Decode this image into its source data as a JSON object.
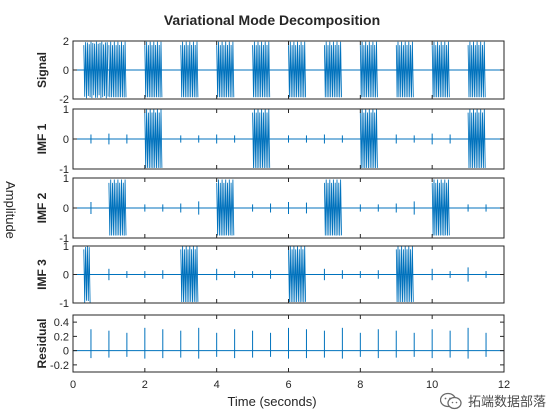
{
  "figure": {
    "title": "Variational Mode Decomposition",
    "xlabel": "Time (seconds)",
    "supylabel": "Amplitude",
    "line_color": "#0072BD",
    "watermark": "拓端数据部落"
  },
  "chart_data": {
    "type": "line",
    "title": "Variational Mode Decomposition",
    "xlabel": "Time (seconds)",
    "ylabel": "Amplitude",
    "xlim": [
      0,
      12
    ],
    "xticks": [
      "0",
      "2",
      "4",
      "6",
      "8",
      "10",
      "12"
    ],
    "grid": false,
    "panels": [
      {
        "name": "Signal",
        "ylim": [
          -2,
          2
        ],
        "yticks": [
          "-2",
          "0",
          "2"
        ],
        "bursts": [
          [
            0.3,
            1.0
          ],
          [
            1.0,
            1.5
          ],
          [
            2.0,
            2.5
          ],
          [
            3.0,
            3.5
          ],
          [
            4.0,
            4.5
          ],
          [
            5.0,
            5.5
          ],
          [
            6.0,
            6.5
          ],
          [
            7.0,
            7.5
          ],
          [
            8.0,
            8.5
          ],
          [
            9.0,
            9.5
          ],
          [
            10.0,
            10.5
          ],
          [
            11.0,
            11.5
          ]
        ],
        "amplitude": 1.95,
        "spikes": []
      },
      {
        "name": "IMF 1",
        "ylim": [
          -1,
          1
        ],
        "yticks": [
          "-1",
          "0",
          "1"
        ],
        "bursts": [
          [
            2.0,
            2.5
          ],
          [
            5.0,
            5.5
          ],
          [
            8.0,
            8.5
          ],
          [
            11.0,
            11.5
          ]
        ],
        "amplitude": 1.0,
        "spikes": [
          [
            0.5,
            0.15
          ],
          [
            1.0,
            0.18
          ],
          [
            1.5,
            0.15
          ],
          [
            3.0,
            0.12
          ],
          [
            3.5,
            0.12
          ],
          [
            4.0,
            0.15
          ],
          [
            4.5,
            0.12
          ],
          [
            6.0,
            0.12
          ],
          [
            6.5,
            0.12
          ],
          [
            7.0,
            0.15
          ],
          [
            7.5,
            0.12
          ],
          [
            9.0,
            0.15
          ],
          [
            9.5,
            0.12
          ],
          [
            10.0,
            0.18
          ],
          [
            10.5,
            0.15
          ]
        ]
      },
      {
        "name": "IMF 2",
        "ylim": [
          -1,
          1
        ],
        "yticks": [
          "-1",
          "0",
          "1"
        ],
        "bursts": [
          [
            1.0,
            1.5
          ],
          [
            4.0,
            4.5
          ],
          [
            7.0,
            7.5
          ],
          [
            10.0,
            10.5
          ]
        ],
        "amplitude": 0.95,
        "spikes": [
          [
            0.5,
            0.2
          ],
          [
            2.0,
            0.12
          ],
          [
            2.5,
            0.12
          ],
          [
            3.0,
            0.15
          ],
          [
            3.5,
            0.22
          ],
          [
            5.0,
            0.12
          ],
          [
            5.5,
            0.15
          ],
          [
            6.0,
            0.2
          ],
          [
            6.5,
            0.18
          ],
          [
            8.0,
            0.12
          ],
          [
            8.5,
            0.12
          ],
          [
            9.0,
            0.15
          ],
          [
            9.5,
            0.22
          ],
          [
            11.0,
            0.12
          ],
          [
            11.5,
            0.12
          ]
        ]
      },
      {
        "name": "IMF 3",
        "ylim": [
          -1,
          1
        ],
        "yticks": [
          "-1",
          "0",
          "1"
        ],
        "bursts": [
          [
            0.3,
            0.5
          ],
          [
            3.0,
            3.5
          ],
          [
            6.0,
            6.5
          ],
          [
            9.0,
            9.5
          ]
        ],
        "amplitude": 1.0,
        "spikes": [
          [
            1.0,
            0.2
          ],
          [
            1.5,
            0.12
          ],
          [
            2.0,
            0.12
          ],
          [
            2.5,
            0.15
          ],
          [
            4.0,
            0.2
          ],
          [
            4.5,
            0.12
          ],
          [
            5.0,
            0.12
          ],
          [
            5.5,
            0.15
          ],
          [
            7.0,
            0.2
          ],
          [
            7.5,
            0.15
          ],
          [
            8.0,
            0.12
          ],
          [
            8.5,
            0.15
          ],
          [
            10.0,
            0.2
          ],
          [
            10.5,
            0.12
          ],
          [
            11.0,
            0.25
          ],
          [
            11.5,
            0.12
          ]
        ]
      },
      {
        "name": "Residual",
        "ylim": [
          -0.3,
          0.5
        ],
        "yticks": [
          "-0.2",
          "0",
          "0.2",
          "0.4"
        ],
        "bursts": [],
        "amplitude": 0,
        "spikes": [
          [
            0.5,
            0.3
          ],
          [
            1.0,
            0.28
          ],
          [
            1.5,
            0.25
          ],
          [
            2.0,
            0.32
          ],
          [
            2.5,
            0.3
          ],
          [
            3.0,
            0.28
          ],
          [
            3.5,
            0.32
          ],
          [
            4.0,
            0.25
          ],
          [
            4.5,
            0.3
          ],
          [
            5.0,
            0.28
          ],
          [
            5.5,
            0.25
          ],
          [
            6.0,
            0.32
          ],
          [
            6.5,
            0.3
          ],
          [
            7.0,
            0.28
          ],
          [
            7.5,
            0.32
          ],
          [
            8.0,
            0.25
          ],
          [
            8.5,
            0.3
          ],
          [
            9.0,
            0.28
          ],
          [
            9.5,
            0.25
          ],
          [
            10.0,
            0.3
          ],
          [
            10.5,
            0.28
          ],
          [
            11.0,
            0.32
          ],
          [
            11.5,
            0.25
          ]
        ]
      }
    ]
  }
}
